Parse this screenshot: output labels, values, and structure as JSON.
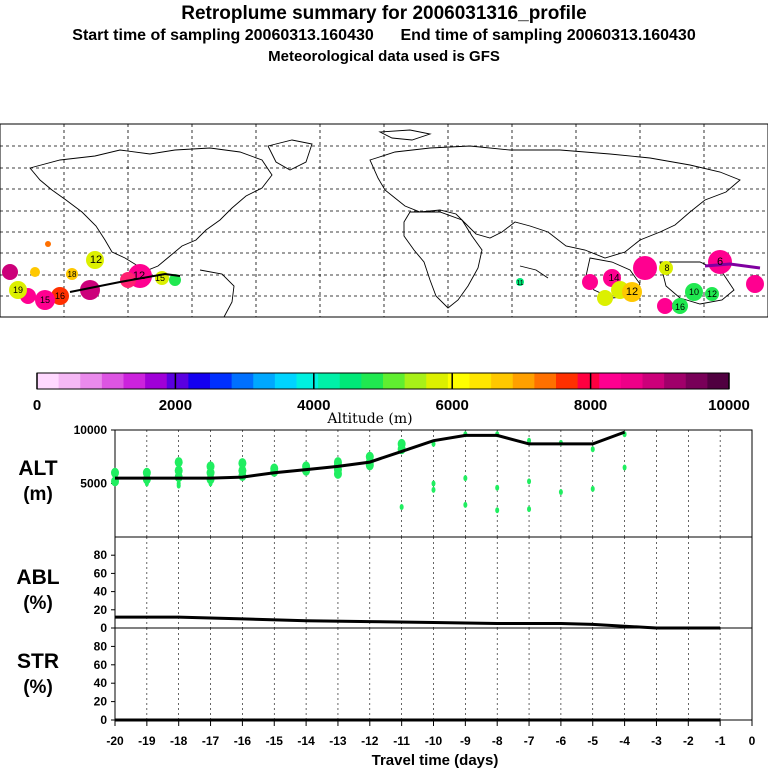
{
  "header": {
    "title": "Retroplume summary for 2006031316_profile",
    "start_label": "Start time of sampling 20060313.160430",
    "end_label": "End time of sampling 20060313.160430",
    "met_label": "Meteorological data used is GFS"
  },
  "colorbar": {
    "label": "Altitude (m)",
    "ticks": [
      "0",
      "2000",
      "4000",
      "6000",
      "8000",
      "10000"
    ],
    "colors": [
      "#ffd9ff",
      "#f5b8f5",
      "#ea8aec",
      "#dd55e3",
      "#cc22dd",
      "#a000d8",
      "#5a00e0",
      "#1400f0",
      "#0030ff",
      "#0070ff",
      "#00a8ff",
      "#00d4ff",
      "#00f0e0",
      "#00f0a8",
      "#00e878",
      "#20e850",
      "#60ee30",
      "#a8f018",
      "#dcf000",
      "#ffff00",
      "#ffe600",
      "#ffc800",
      "#ffa000",
      "#ff7000",
      "#ff3000",
      "#ff0040",
      "#ff0090",
      "#ee0088",
      "#cc007a",
      "#a0006a",
      "#780058",
      "#500040"
    ]
  },
  "map": {
    "labels": [
      "12",
      "12",
      "15",
      "8",
      "16",
      "14",
      "12",
      "18",
      "6",
      "16",
      "10",
      "12",
      "19",
      "15",
      "11"
    ]
  },
  "chart_data": {
    "type": "line",
    "xlabel": "Travel time (days)",
    "x_ticks": [
      "-20",
      "-19",
      "-18",
      "-17",
      "-16",
      "-15",
      "-14",
      "-13",
      "-12",
      "-11",
      "-10",
      "-9",
      "-8",
      "-7",
      "-6",
      "-5",
      "-4",
      "-3",
      "-2",
      "-1",
      "0"
    ],
    "xlim": [
      -20,
      0
    ],
    "panels": [
      {
        "name": "ALT",
        "ylabel": "ALT",
        "unit": "(m)",
        "ylim": [
          0,
          10000
        ],
        "y_ticks": [
          "10000",
          "5000"
        ],
        "line_x": [
          -20,
          -19,
          -18,
          -17,
          -16,
          -15,
          -14,
          -13,
          -12,
          -11,
          -10,
          -9,
          -8,
          -7,
          -6,
          -5,
          -4
        ],
        "line_y": [
          5500,
          5500,
          5500,
          5500,
          5600,
          6000,
          6300,
          6600,
          7000,
          8000,
          9000,
          9500,
          9500,
          8700,
          8700,
          8700,
          9800
        ],
        "particles": [
          [
            -20,
            6000
          ],
          [
            -20,
            5200
          ],
          [
            -19,
            6000
          ],
          [
            -19,
            5400
          ],
          [
            -19,
            5000
          ],
          [
            -18,
            6200
          ],
          [
            -18,
            5600
          ],
          [
            -18,
            5000
          ],
          [
            -18,
            4800
          ],
          [
            -18,
            7000
          ],
          [
            -17,
            6000
          ],
          [
            -17,
            5400
          ],
          [
            -17,
            6600
          ],
          [
            -17,
            5000
          ],
          [
            -16,
            6200
          ],
          [
            -16,
            5700
          ],
          [
            -16,
            6900
          ],
          [
            -15,
            6400
          ],
          [
            -15,
            6100
          ],
          [
            -14,
            6600
          ],
          [
            -14,
            6200
          ],
          [
            -13,
            7000
          ],
          [
            -13,
            6700
          ],
          [
            -13,
            6300
          ],
          [
            -13,
            5900
          ],
          [
            -12,
            7500
          ],
          [
            -12,
            7000
          ],
          [
            -12,
            6700
          ],
          [
            -11,
            8200
          ],
          [
            -11,
            8700
          ],
          [
            -11,
            2800
          ],
          [
            -10,
            8700
          ],
          [
            -10,
            5000
          ],
          [
            -10,
            4400
          ],
          [
            -9,
            9600
          ],
          [
            -9,
            3000
          ],
          [
            -9,
            5500
          ],
          [
            -8,
            9600
          ],
          [
            -8,
            4600
          ],
          [
            -8,
            2500
          ],
          [
            -7,
            9000
          ],
          [
            -7,
            5200
          ],
          [
            -7,
            2600
          ],
          [
            -6,
            8800
          ],
          [
            -6,
            4200
          ],
          [
            -5,
            8200
          ],
          [
            -5,
            4500
          ],
          [
            -4,
            9600
          ],
          [
            -4,
            6500
          ]
        ]
      },
      {
        "name": "ABL",
        "ylabel": "ABL",
        "unit": "(%)",
        "ylim": [
          0,
          100
        ],
        "y_ticks": [
          "80",
          "60",
          "40",
          "20",
          "0"
        ],
        "line_x": [
          -20,
          -18,
          -16,
          -14,
          -12,
          -10,
          -8,
          -6,
          -5,
          -4,
          -3,
          -2,
          -1
        ],
        "line_y": [
          12,
          12,
          10,
          8,
          7,
          6,
          5,
          5,
          4,
          2,
          0,
          0,
          0
        ]
      },
      {
        "name": "STR",
        "ylabel": "STR",
        "unit": "(%)",
        "ylim": [
          0,
          100
        ],
        "y_ticks": [
          "80",
          "60",
          "40",
          "20",
          "0"
        ],
        "line_x": [
          -20,
          -1
        ],
        "line_y": [
          0,
          0
        ]
      }
    ]
  }
}
